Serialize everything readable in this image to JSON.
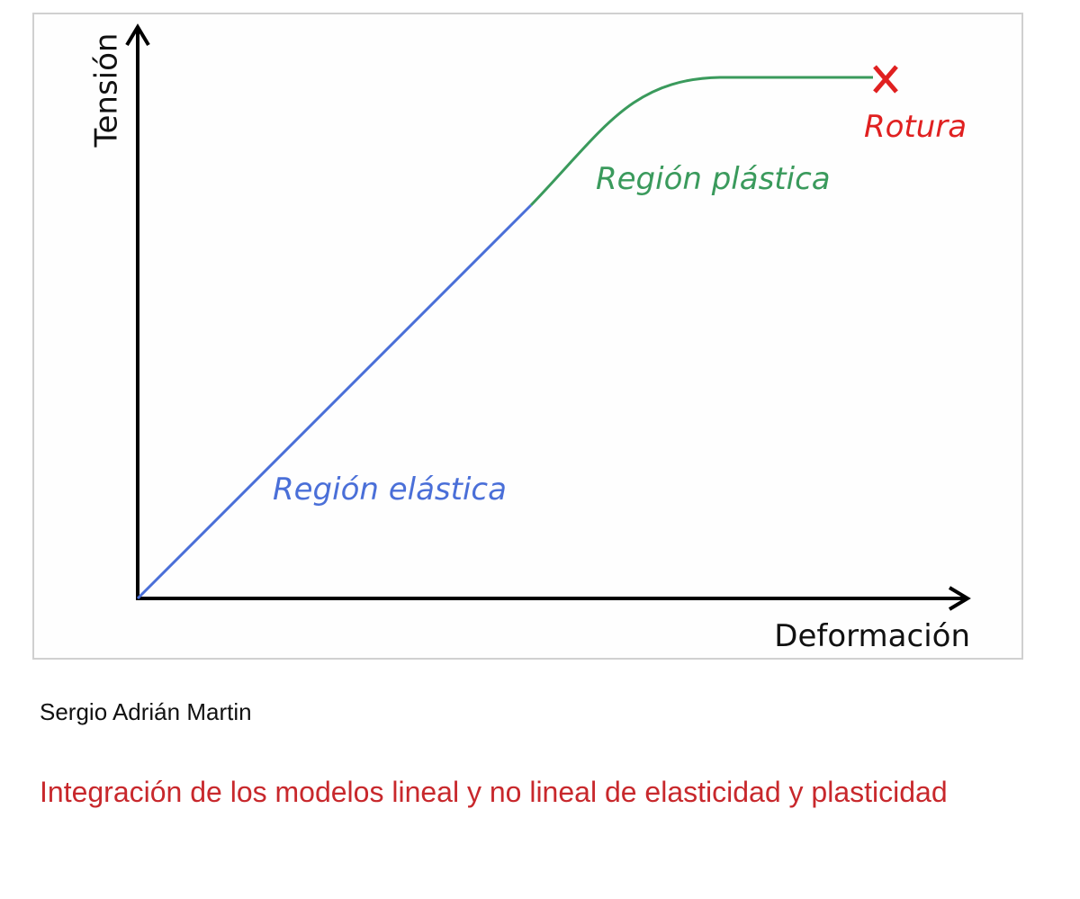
{
  "diagram": {
    "y_axis_label": "Tensión",
    "x_axis_label": "Deformación",
    "elastic_label": "Región elástica",
    "plastic_label": "Región plástica",
    "break_label": "Rotura"
  },
  "author": "Sergio Adrián Martin",
  "title": "Integración de los modelos lineal y no lineal de elasticidad y plasticidad"
}
